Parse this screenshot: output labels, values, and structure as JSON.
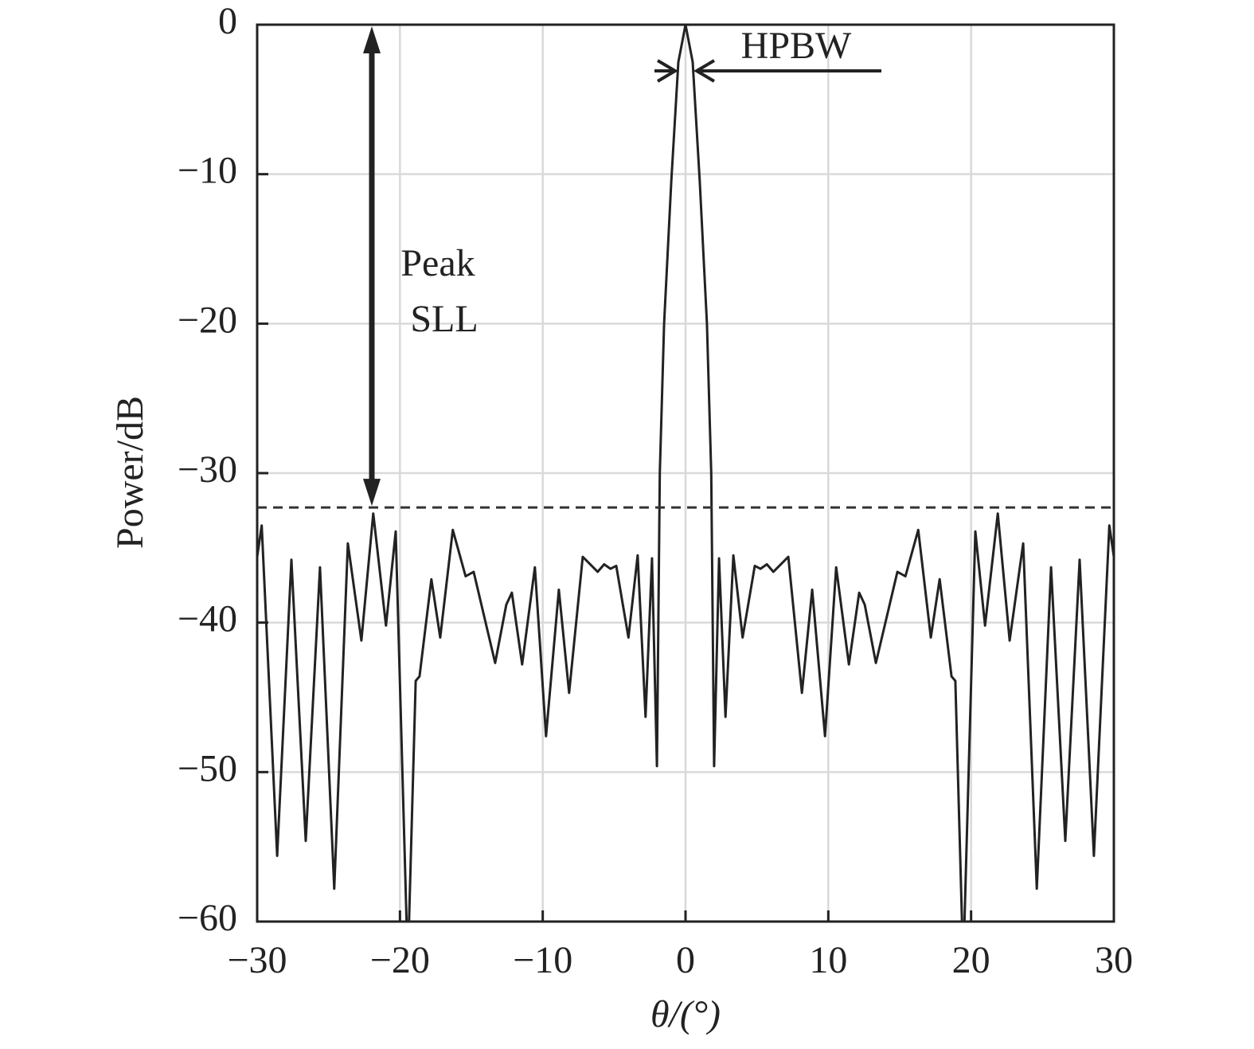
{
  "chart_data": {
    "type": "line",
    "x_label": "θ/(°)",
    "y_label": "Power/dB",
    "annotations": {
      "hpbw": "HPBW",
      "peak": "Peak",
      "sll": "SLL"
    },
    "reference_line": -32.3,
    "xlim": [
      -30,
      30
    ],
    "xticks": [
      {
        "value": -30,
        "label": "−30"
      },
      {
        "value": -20,
        "label": "−20"
      },
      {
        "value": -10,
        "label": "−10"
      },
      0,
      10,
      20,
      30
    ],
    "ylim": [
      -60,
      0
    ],
    "yticks": [
      0,
      {
        "value": -10,
        "label": "−10"
      },
      {
        "value": -20,
        "label": "−20"
      },
      {
        "value": -30,
        "label": "−30"
      },
      {
        "value": -40,
        "label": "−40"
      },
      {
        "value": -50,
        "label": "−50"
      },
      {
        "value": -60,
        "label": "−60"
      }
    ],
    "grid": true,
    "x": [
      -30,
      -29.68,
      -28.6,
      -27.6,
      -26.6,
      -25.6,
      -24.6,
      -23.65,
      -22.7,
      -21.87,
      -20.98,
      -20.3,
      -19.45,
      -18.9,
      -18.63,
      -17.8,
      -17.18,
      -16.3,
      -15.4,
      -14.84,
      -13.33,
      -12.55,
      -12.16,
      -11.44,
      -10.55,
      -9.77,
      -8.87,
      -8.15,
      -7.2,
      -6.15,
      -5.7,
      -5.25,
      -4.85,
      -4.0,
      -3.35,
      -2.8,
      -2.35,
      -2.0,
      -1.8,
      -1.5,
      -1.0,
      -0.5,
      0,
      0.5,
      1.0,
      1.5,
      1.8,
      2.0,
      2.35,
      2.8,
      3.35,
      4.0,
      4.85,
      5.25,
      5.7,
      6.15,
      7.2,
      8.15,
      8.87,
      9.77,
      10.55,
      11.44,
      12.16,
      12.55,
      13.33,
      14.84,
      15.4,
      16.3,
      17.18,
      17.8,
      18.63,
      18.9,
      19.45,
      20.3,
      20.98,
      21.87,
      22.7,
      23.65,
      24.6,
      25.6,
      26.6,
      27.6,
      28.6,
      29.68,
      30
    ],
    "series": [
      {
        "color": "#222222",
        "values": [
          -35.6,
          -33.5,
          -55.6,
          -35.8,
          -54.6,
          -36.3,
          -57.8,
          -34.7,
          -41.2,
          -32.7,
          -40.2,
          -33.9,
          -63,
          -43.9,
          -43.6,
          -37.1,
          -41,
          -33.8,
          -36.9,
          -36.6,
          -42.7,
          -38.8,
          -38,
          -42.8,
          -36.3,
          -47.6,
          -37.8,
          -44.7,
          -35.6,
          -36.6,
          -36.1,
          -36.4,
          -36.2,
          -41,
          -35.5,
          -46.3,
          -35.7,
          -49.6,
          -30,
          -20,
          -10.5,
          -2.5,
          0,
          -2.5,
          -10.5,
          -20,
          -30,
          -49.6,
          -35.7,
          -46.3,
          -35.5,
          -41,
          -36.2,
          -36.4,
          -36.1,
          -36.6,
          -35.6,
          -44.7,
          -37.8,
          -47.6,
          -36.3,
          -42.8,
          -38,
          -38.8,
          -42.7,
          -36.6,
          -36.9,
          -33.8,
          -41,
          -37.1,
          -43.6,
          -43.9,
          -63,
          -33.9,
          -40.2,
          -32.7,
          -41.2,
          -34.7,
          -57.8,
          -36.3,
          -54.6,
          -35.8,
          -55.6,
          -33.5,
          -35.6
        ]
      }
    ]
  }
}
